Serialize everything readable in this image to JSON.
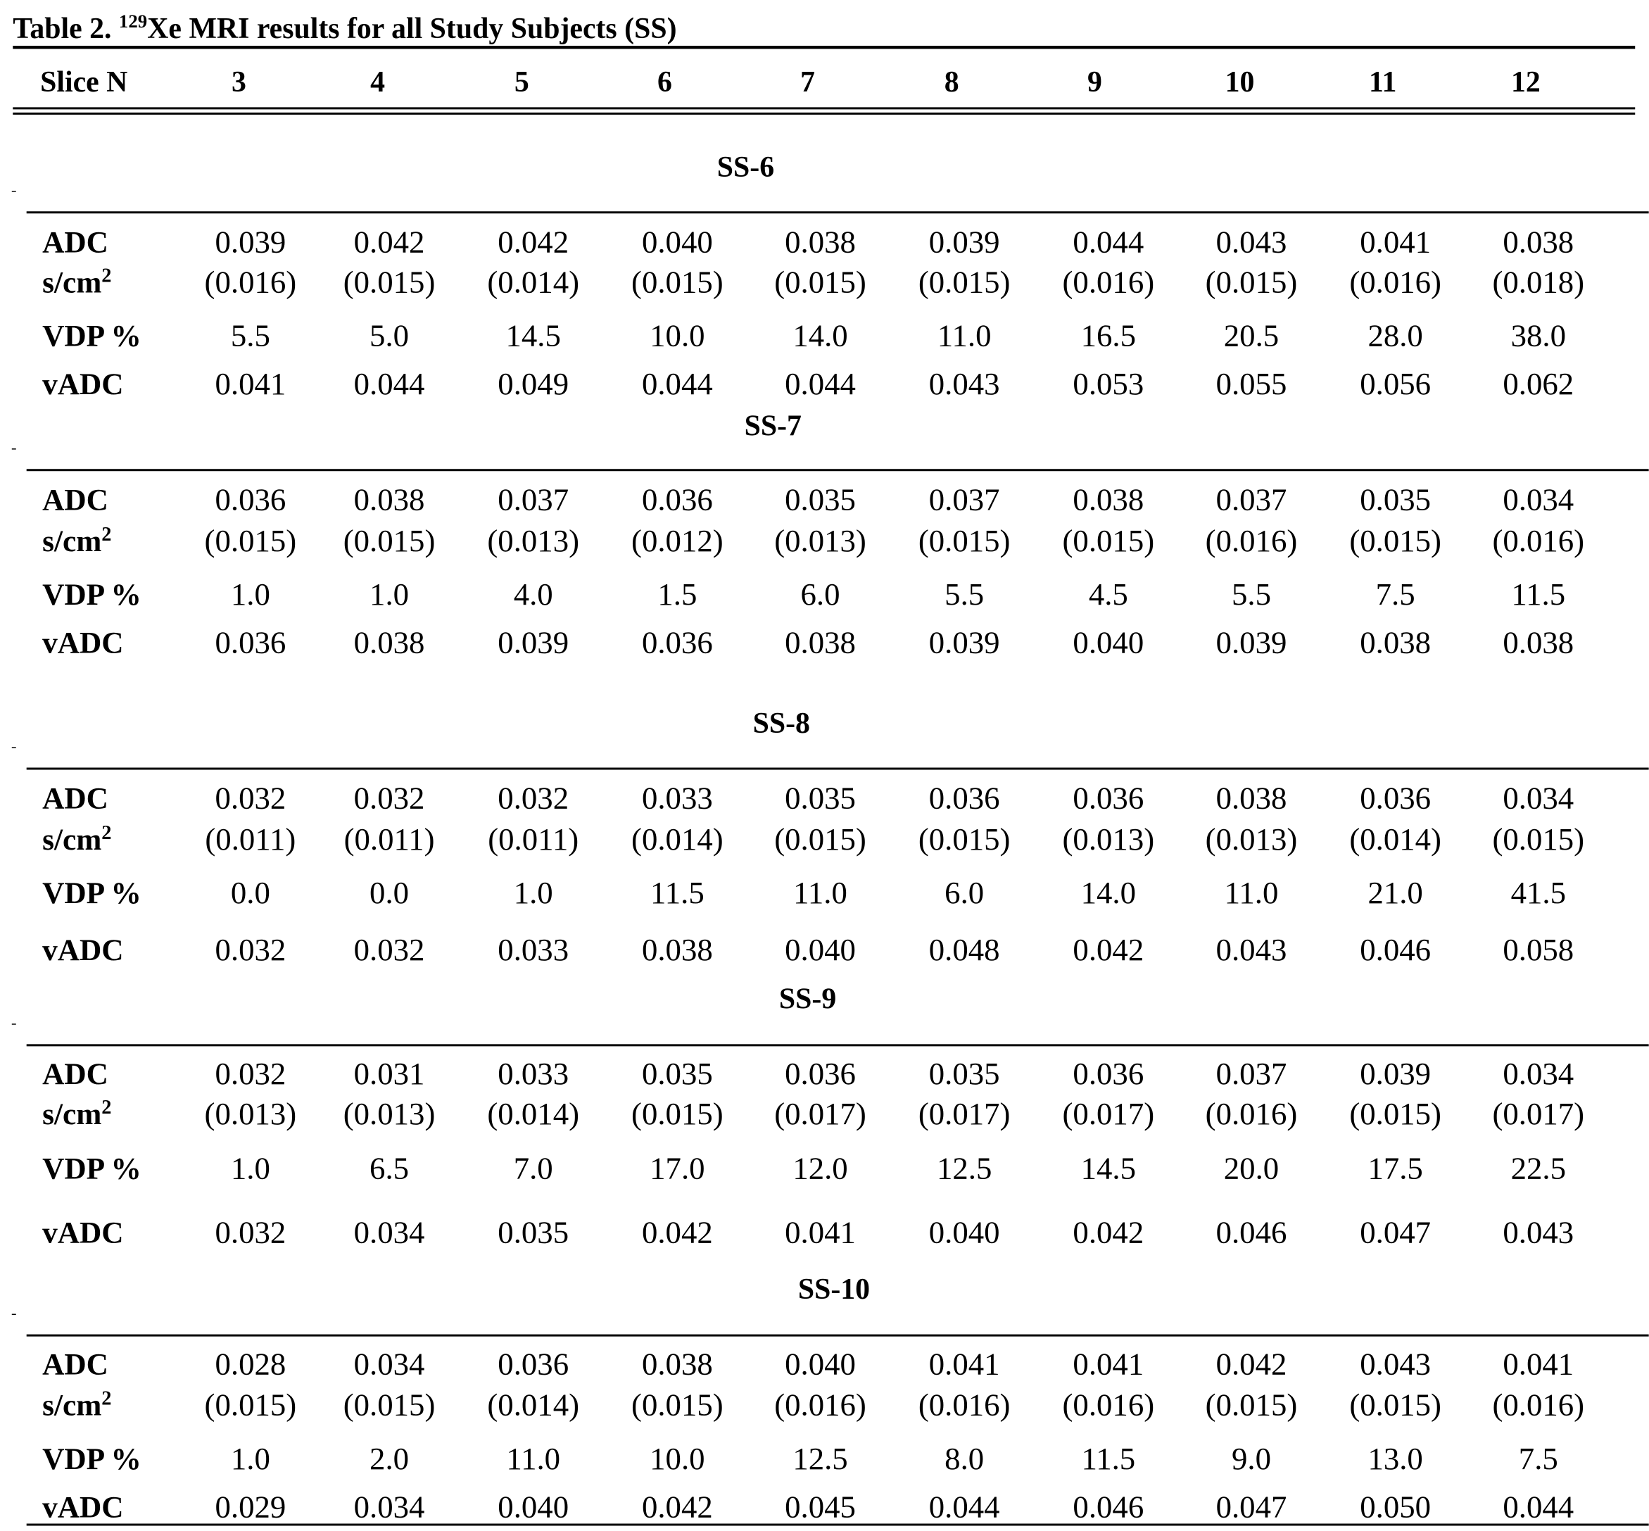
{
  "title": {
    "prefix": "Table 2.",
    "superscript": "129",
    "text": "Xe MRI results for all Study Subjects (SS)"
  },
  "header": {
    "label": "Slice N",
    "slices": [
      "3",
      "4",
      "5",
      "6",
      "7",
      "8",
      "9",
      "10",
      "11",
      "12"
    ]
  },
  "row_labels": {
    "adc": "ADC",
    "unit": "s/cm",
    "unit_exp": "2",
    "vdp": "VDP %",
    "vadc": "vADC"
  },
  "groups": [
    {
      "name": "SS-6",
      "adc": [
        "0.039",
        "0.042",
        "0.042",
        "0.040",
        "0.038",
        "0.039",
        "0.044",
        "0.043",
        "0.041",
        "0.038"
      ],
      "adc_sd": [
        "(0.016)",
        "(0.015)",
        "(0.014)",
        "(0.015)",
        "(0.015)",
        "(0.015)",
        "(0.016)",
        "(0.015)",
        "(0.016)",
        "(0.018)"
      ],
      "vdp": [
        "5.5",
        "5.0",
        "14.5",
        "10.0",
        "14.0",
        "11.0",
        "16.5",
        "20.5",
        "28.0",
        "38.0"
      ],
      "vadc": [
        "0.041",
        "0.044",
        "0.049",
        "0.044",
        "0.044",
        "0.043",
        "0.053",
        "0.055",
        "0.056",
        "0.062"
      ]
    },
    {
      "name": "SS-7",
      "adc": [
        "0.036",
        "0.038",
        "0.037",
        "0.036",
        "0.035",
        "0.037",
        "0.038",
        "0.037",
        "0.035",
        "0.034"
      ],
      "adc_sd": [
        "(0.015)",
        "(0.015)",
        "(0.013)",
        "(0.012)",
        "(0.013)",
        "(0.015)",
        "(0.015)",
        "(0.016)",
        "(0.015)",
        "(0.016)"
      ],
      "vdp": [
        "1.0",
        "1.0",
        "4.0",
        "1.5",
        "6.0",
        "5.5",
        "4.5",
        "5.5",
        "7.5",
        "11.5"
      ],
      "vadc": [
        "0.036",
        "0.038",
        "0.039",
        "0.036",
        "0.038",
        "0.039",
        "0.040",
        "0.039",
        "0.038",
        "0.038"
      ]
    },
    {
      "name": "SS-8",
      "adc": [
        "0.032",
        "0.032",
        "0.032",
        "0.033",
        "0.035",
        "0.036",
        "0.036",
        "0.038",
        "0.036",
        "0.034"
      ],
      "adc_sd": [
        "(0.011)",
        "(0.011)",
        "(0.011)",
        "(0.014)",
        "(0.015)",
        "(0.015)",
        "(0.013)",
        "(0.013)",
        "(0.014)",
        "(0.015)"
      ],
      "vdp": [
        "0.0",
        "0.0",
        "1.0",
        "11.5",
        "11.0",
        "6.0",
        "14.0",
        "11.0",
        "21.0",
        "41.5"
      ],
      "vadc": [
        "0.032",
        "0.032",
        "0.033",
        "0.038",
        "0.040",
        "0.048",
        "0.042",
        "0.043",
        "0.046",
        "0.058"
      ]
    },
    {
      "name": "SS-9",
      "adc": [
        "0.032",
        "0.031",
        "0.033",
        "0.035",
        "0.036",
        "0.035",
        "0.036",
        "0.037",
        "0.039",
        "0.034"
      ],
      "adc_sd": [
        "(0.013)",
        "(0.013)",
        "(0.014)",
        "(0.015)",
        "(0.017)",
        "(0.017)",
        "(0.017)",
        "(0.016)",
        "(0.015)",
        "(0.017)"
      ],
      "vdp": [
        "1.0",
        "6.5",
        "7.0",
        "17.0",
        "12.0",
        "12.5",
        "14.5",
        "20.0",
        "17.5",
        "22.5"
      ],
      "vadc": [
        "0.032",
        "0.034",
        "0.035",
        "0.042",
        "0.041",
        "0.040",
        "0.042",
        "0.046",
        "0.047",
        "0.043"
      ]
    },
    {
      "name": "SS-10",
      "adc": [
        "0.028",
        "0.034",
        "0.036",
        "0.038",
        "0.040",
        "0.041",
        "0.041",
        "0.042",
        "0.043",
        "0.041"
      ],
      "adc_sd": [
        "(0.015)",
        "(0.015)",
        "(0.014)",
        "(0.015)",
        "(0.016)",
        "(0.016)",
        "(0.016)",
        "(0.015)",
        "(0.015)",
        "(0.016)"
      ],
      "vdp": [
        "1.0",
        "2.0",
        "11.0",
        "10.0",
        "12.5",
        "8.0",
        "11.5",
        "9.0",
        "13.0",
        "7.5"
      ],
      "vadc": [
        "0.029",
        "0.034",
        "0.040",
        "0.042",
        "0.045",
        "0.044",
        "0.046",
        "0.047",
        "0.050",
        "0.044"
      ]
    }
  ]
}
